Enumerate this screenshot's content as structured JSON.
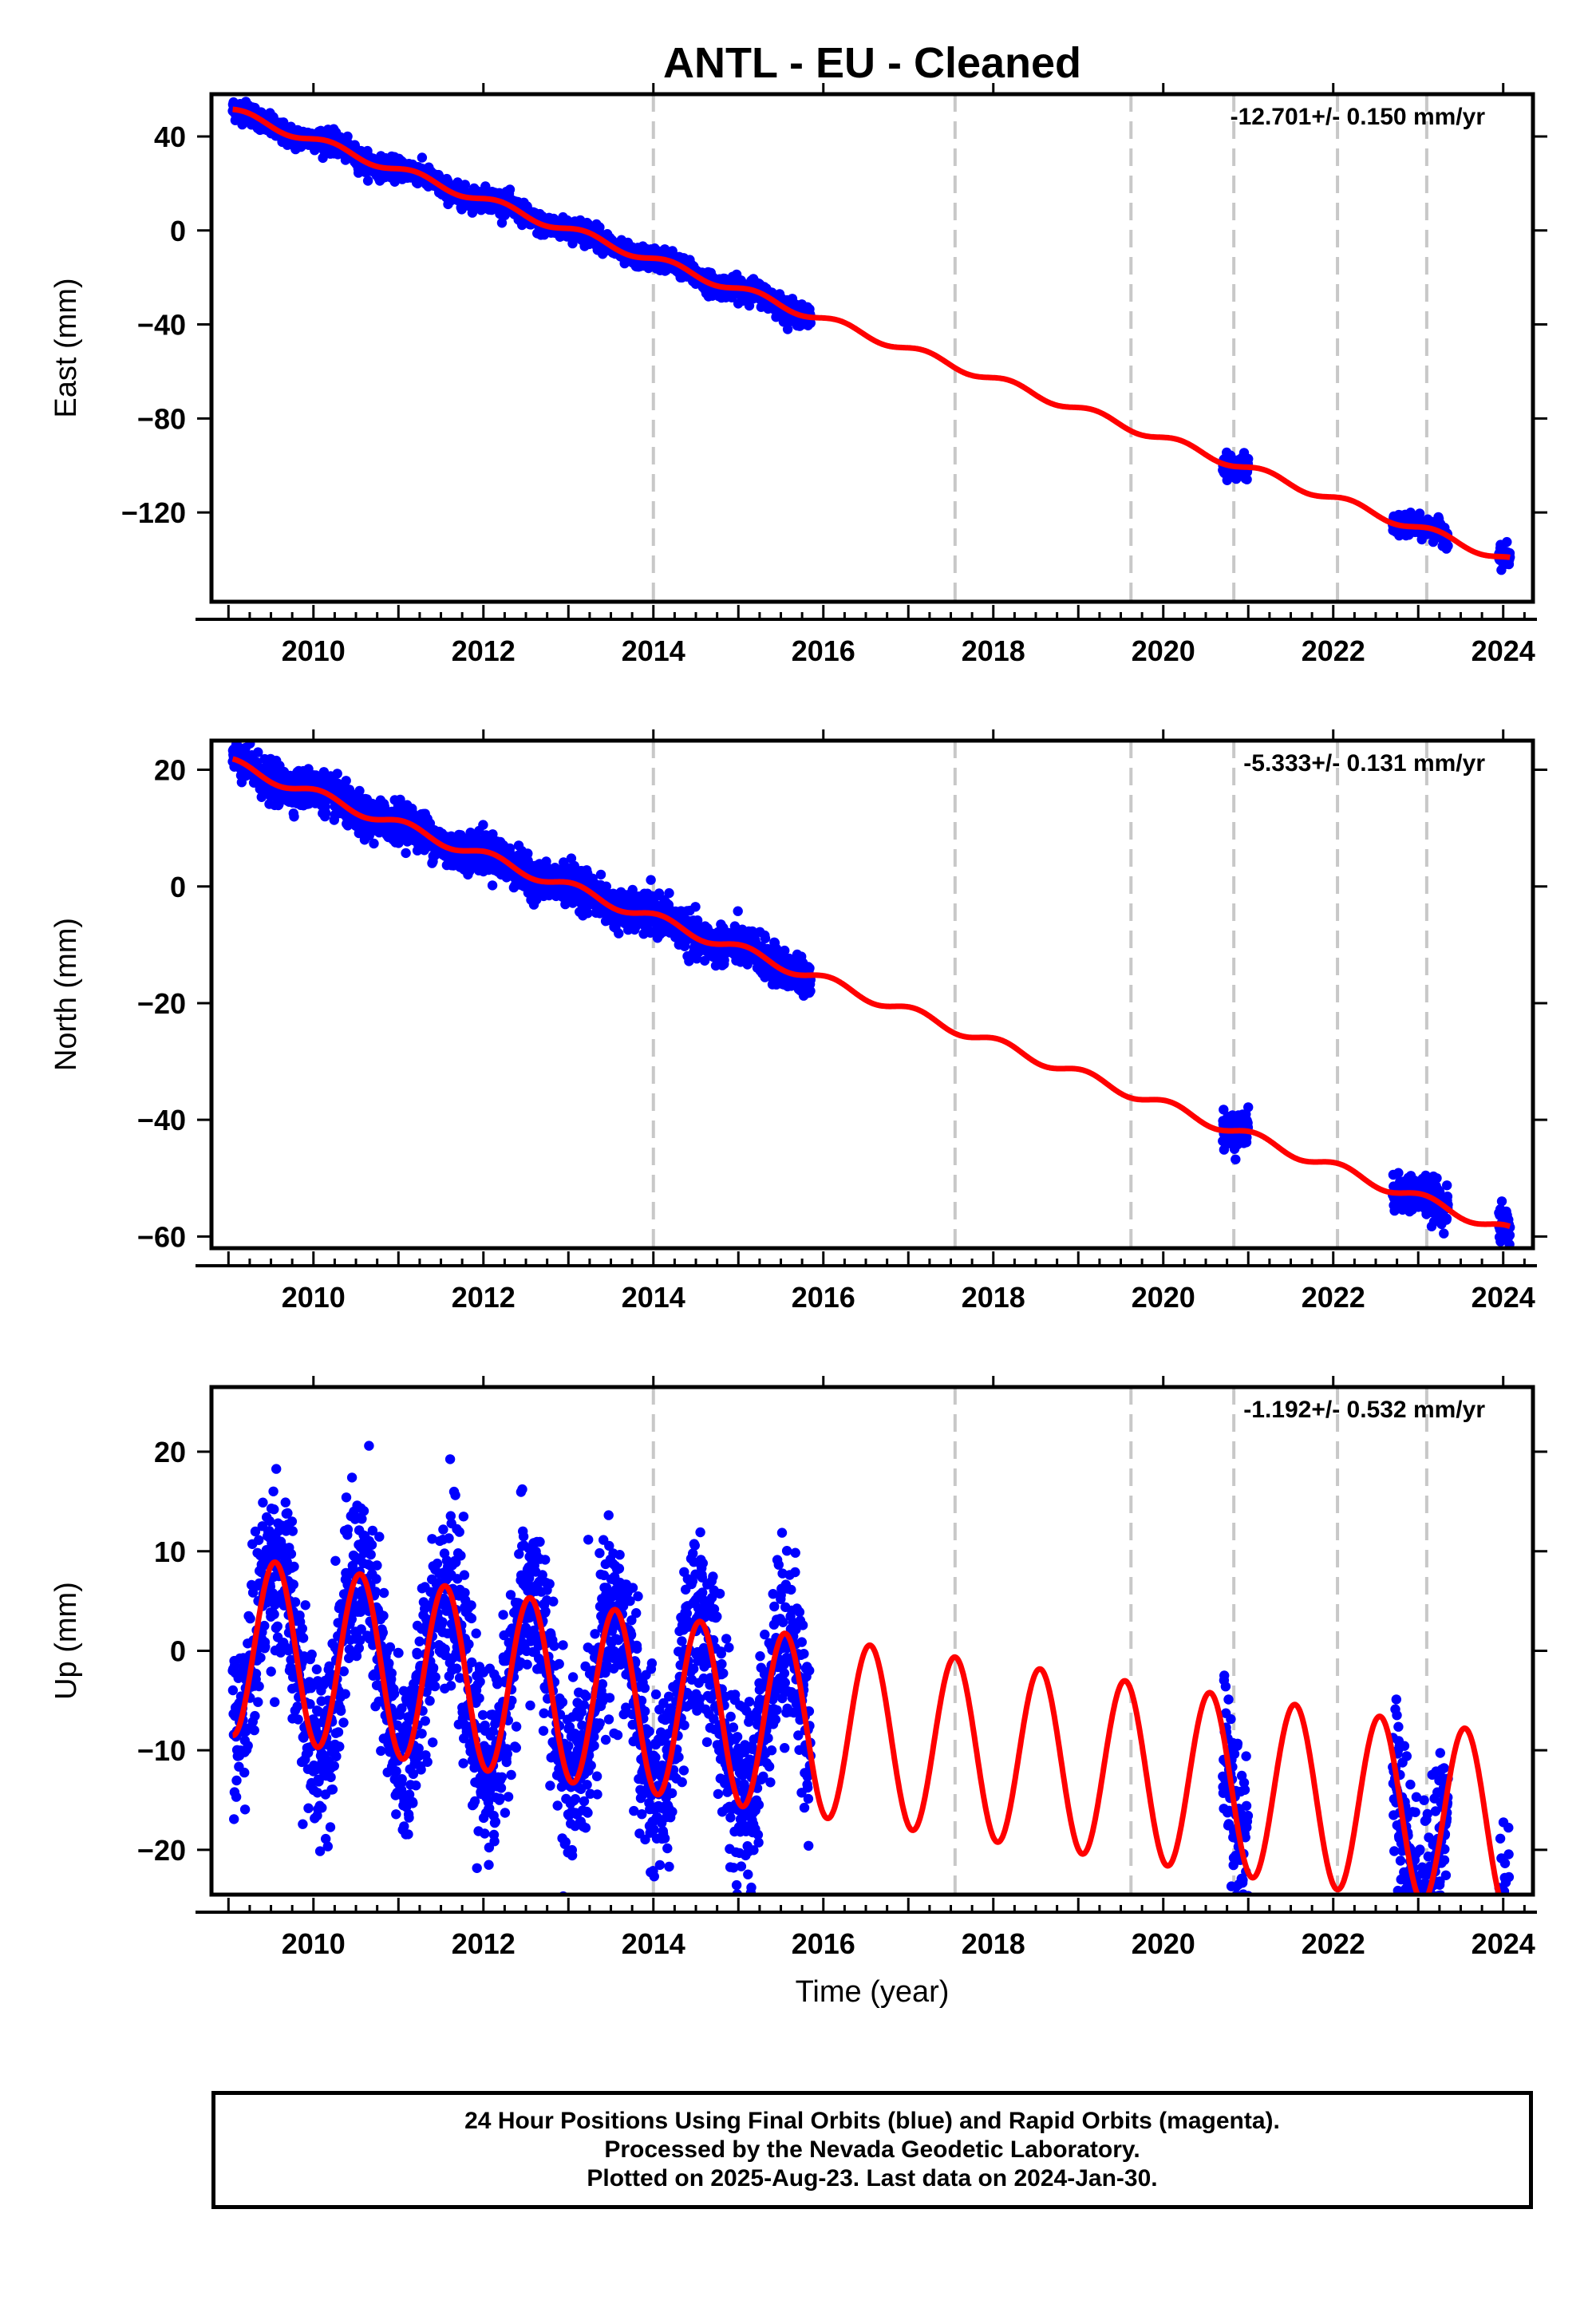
{
  "title": "ANTL  - EU - Cleaned",
  "colors": {
    "observed": "#0000ff",
    "model": "#ff0000",
    "event_line": "#c8c8c8",
    "frame": "#000000"
  },
  "footer": {
    "line1": "24 Hour Positions Using Final Orbits (blue) and Rapid Orbits (magenta).",
    "line2": "Processed by the Nevada Geodetic Laboratory.",
    "line3": "Plotted on 2025-Aug-23. Last data on 2024-Jan-30."
  },
  "chart_data": [
    {
      "type": "scatter",
      "component": "East",
      "ylabel": "East (mm)",
      "xlabel": "",
      "rate_label": "-12.701+/- 0.150 mm/yr",
      "xlim": [
        2008.8,
        2024.35
      ],
      "ylim": [
        -158,
        58
      ],
      "x_ticks": [
        2010,
        2012,
        2014,
        2016,
        2018,
        2020,
        2022,
        2024
      ],
      "y_ticks": [
        40,
        0,
        -40,
        -80,
        -120
      ],
      "event_lines": [
        2014.0,
        2017.55,
        2019.62,
        2020.83,
        2022.05,
        2023.1
      ],
      "data_segments": [
        [
          2009.05,
          2015.85
        ],
        [
          2020.7,
          2021.0
        ],
        [
          2022.7,
          2023.35
        ],
        [
          2023.95,
          2024.08
        ]
      ],
      "model": {
        "offset": 50.5,
        "rate": -12.701,
        "annual_amp": 1.8,
        "annual_phase": 0.3,
        "start": 2009.05,
        "end": 2024.08,
        "steps": [
          [
            2014.0,
            0
          ],
          [
            2020.83,
            0
          ],
          [
            2023.1,
            0
          ]
        ]
      },
      "scatter_noise": 2.2
    },
    {
      "type": "scatter",
      "component": "North",
      "ylabel": "North (mm)",
      "xlabel": "",
      "rate_label": "-5.333+/- 0.131 mm/yr",
      "xlim": [
        2008.8,
        2024.35
      ],
      "ylim": [
        -62,
        25
      ],
      "x_ticks": [
        2010,
        2012,
        2014,
        2016,
        2018,
        2020,
        2022,
        2024
      ],
      "y_ticks": [
        20,
        0,
        -20,
        -40,
        -60
      ],
      "event_lines": [
        2014.0,
        2017.55,
        2019.62,
        2020.83,
        2022.05,
        2023.1
      ],
      "data_segments": [
        [
          2009.05,
          2015.85
        ],
        [
          2020.7,
          2021.0
        ],
        [
          2022.7,
          2023.35
        ],
        [
          2023.95,
          2024.08
        ]
      ],
      "model": {
        "offset": 21.0,
        "rate": -5.333,
        "annual_amp": 0.9,
        "annual_phase": 1.0,
        "start": 2009.05,
        "end": 2024.08,
        "steps": []
      },
      "scatter_noise": 1.6
    },
    {
      "type": "scatter",
      "component": "Up",
      "ylabel": "Up (mm)",
      "xlabel": "Time (year)",
      "rate_label": "-1.192+/- 0.532 mm/yr",
      "xlim": [
        2008.8,
        2024.35
      ],
      "ylim": [
        -24.5,
        26.5
      ],
      "x_ticks": [
        2010,
        2012,
        2014,
        2016,
        2018,
        2020,
        2022,
        2024
      ],
      "y_ticks": [
        20,
        10,
        0,
        -10,
        -20
      ],
      "event_lines": [
        2014.0,
        2017.55,
        2019.62,
        2020.83,
        2022.05,
        2023.1
      ],
      "data_segments": [
        [
          2009.05,
          2015.85
        ],
        [
          2020.7,
          2021.0
        ],
        [
          2022.7,
          2023.35
        ],
        [
          2023.95,
          2024.08
        ]
      ],
      "model": {
        "offset": 0.5,
        "rate": -1.192,
        "annual_amp": 9.0,
        "annual_phase": 4.4,
        "start": 2009.05,
        "end": 2024.08,
        "steps": []
      },
      "scatter_noise": 4.5
    }
  ]
}
